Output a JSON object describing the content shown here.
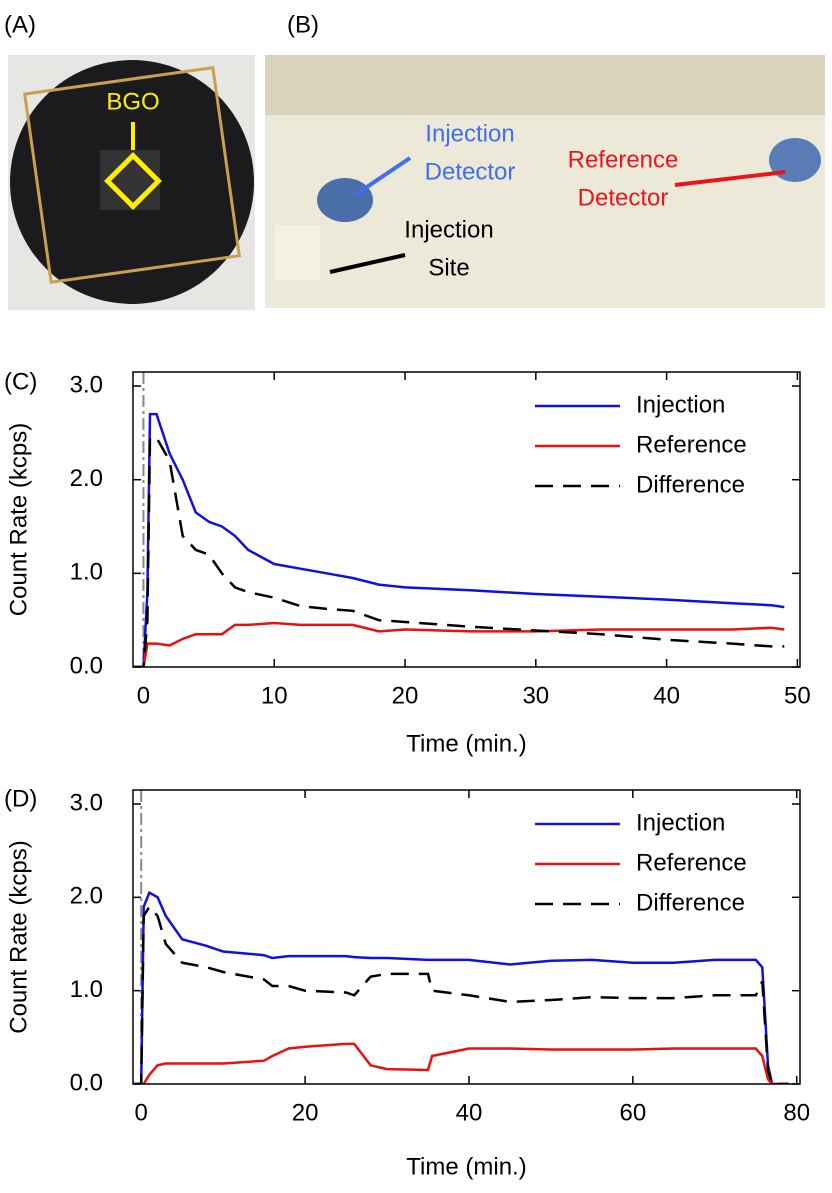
{
  "photos": [
    {
      "label": "(A)",
      "annotations": [
        {
          "text": [
            "BGO"
          ],
          "color": "#ffee00"
        }
      ]
    },
    {
      "label": "(B)",
      "annotations": [
        {
          "text": [
            "Injection",
            "Detector"
          ],
          "color": "#3f6ff0"
        },
        {
          "text": [
            "Reference",
            "Detector"
          ],
          "color": "#e8161b"
        },
        {
          "text": [
            "Injection",
            "Site"
          ],
          "color": "#000000"
        }
      ]
    }
  ],
  "chart_data": [
    {
      "type": "line",
      "panel": "(C)",
      "xlabel": "Time (min.)",
      "ylabel": "Count Rate (kcps)",
      "xlim": [
        -0.8,
        50.2
      ],
      "ylim": [
        0,
        3.15
      ],
      "xticks": [
        0,
        10,
        20,
        30,
        40,
        50
      ],
      "yticks": [
        {
          "value": 0,
          "label": "0.0"
        },
        {
          "value": 1,
          "label": "1.0"
        },
        {
          "value": 2,
          "label": "2.0"
        },
        {
          "value": 3,
          "label": "3.0"
        }
      ],
      "vline_x": 0,
      "legend": "upper right",
      "x": [
        -1,
        0,
        0.3,
        0.5,
        1,
        2,
        3,
        4,
        5,
        6,
        7,
        8,
        10,
        12,
        14,
        16,
        18,
        20,
        25,
        30,
        35,
        40,
        45,
        48,
        49
      ],
      "series": [
        {
          "name": "Injection",
          "color": "#1010e0",
          "style": "solid",
          "values": [
            0,
            0,
            0.8,
            2.7,
            2.7,
            2.28,
            2.0,
            1.65,
            1.55,
            1.5,
            1.4,
            1.25,
            1.1,
            1.05,
            1.0,
            0.95,
            0.88,
            0.85,
            0.82,
            0.78,
            0.75,
            0.72,
            0.68,
            0.66,
            0.64
          ]
        },
        {
          "name": "Reference",
          "color": "#e81010",
          "style": "solid",
          "values": [
            0,
            0,
            0.25,
            0.25,
            0.25,
            0.23,
            0.3,
            0.35,
            0.35,
            0.35,
            0.45,
            0.45,
            0.47,
            0.45,
            0.45,
            0.45,
            0.38,
            0.4,
            0.38,
            0.38,
            0.4,
            0.4,
            0.4,
            0.42,
            0.4
          ]
        },
        {
          "name": "Difference",
          "color": "#000000",
          "style": "dashed",
          "values": [
            0,
            0,
            0.5,
            2.45,
            2.45,
            2.2,
            1.4,
            1.25,
            1.2,
            1.0,
            0.85,
            0.8,
            0.74,
            0.65,
            0.62,
            0.6,
            0.5,
            0.48,
            0.43,
            0.39,
            0.35,
            0.29,
            0.25,
            0.22,
            0.22
          ]
        }
      ]
    },
    {
      "type": "line",
      "panel": "(D)",
      "xlabel": "Time (min.)",
      "ylabel": "Count Rate (kcps)",
      "xlim": [
        -1,
        80.4
      ],
      "ylim": [
        0,
        3.15
      ],
      "xticks": [
        0,
        20,
        40,
        60,
        80
      ],
      "yticks": [
        {
          "value": 0,
          "label": "0.0"
        },
        {
          "value": 1,
          "label": "1.0"
        },
        {
          "value": 2,
          "label": "2.0"
        },
        {
          "value": 3,
          "label": "3.0"
        }
      ],
      "vline_x": 0,
      "legend": "upper right",
      "x": [
        -1,
        0,
        0.3,
        1,
        2,
        3,
        5,
        8,
        10,
        15,
        16,
        18,
        20,
        25,
        26,
        28,
        30,
        35,
        35.5,
        40,
        45,
        50,
        55,
        60,
        65,
        70,
        75,
        75.8,
        76.5,
        77,
        78,
        79
      ],
      "series": [
        {
          "name": "Injection",
          "color": "#1010e0",
          "style": "solid",
          "values": [
            0,
            0,
            1.9,
            2.05,
            2.0,
            1.8,
            1.55,
            1.48,
            1.42,
            1.38,
            1.35,
            1.37,
            1.37,
            1.37,
            1.36,
            1.35,
            1.35,
            1.33,
            1.33,
            1.33,
            1.28,
            1.32,
            1.33,
            1.3,
            1.3,
            1.33,
            1.33,
            1.25,
            0.2,
            0,
            0,
            0
          ]
        },
        {
          "name": "Reference",
          "color": "#e81010",
          "style": "solid",
          "values": [
            0,
            0,
            0,
            0.1,
            0.2,
            0.22,
            0.22,
            0.22,
            0.22,
            0.25,
            0.3,
            0.38,
            0.4,
            0.43,
            0.43,
            0.2,
            0.16,
            0.15,
            0.3,
            0.38,
            0.38,
            0.37,
            0.37,
            0.37,
            0.38,
            0.38,
            0.38,
            0.3,
            0.05,
            0,
            0,
            0
          ]
        },
        {
          "name": "Difference",
          "color": "#000000",
          "style": "dashed",
          "values": [
            0,
            0,
            1.8,
            1.9,
            1.8,
            1.5,
            1.3,
            1.25,
            1.2,
            1.12,
            1.05,
            1.05,
            1.0,
            0.98,
            0.95,
            1.15,
            1.18,
            1.18,
            1.0,
            0.95,
            0.88,
            0.9,
            0.93,
            0.92,
            0.92,
            0.95,
            0.95,
            1.1,
            0.15,
            0,
            0,
            0
          ]
        }
      ]
    }
  ]
}
